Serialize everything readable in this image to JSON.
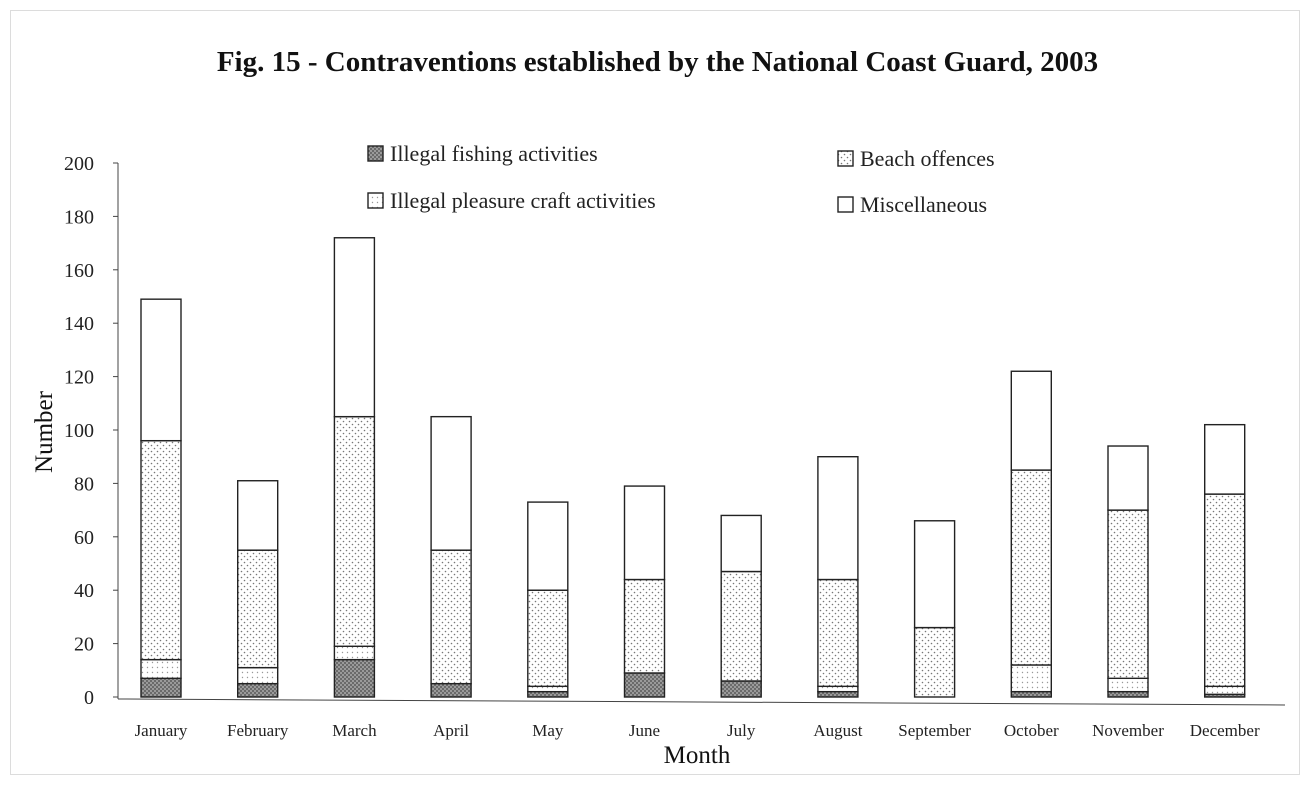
{
  "chart_data": {
    "type": "bar",
    "stacked": true,
    "title": "Fig. 15 - Contraventions established by the National Coast Guard, 2003",
    "xlabel": "Month",
    "ylabel": "Number",
    "ylim": [
      0,
      200
    ],
    "yticks": [
      0,
      20,
      40,
      60,
      80,
      100,
      120,
      140,
      160,
      180,
      200
    ],
    "grid": false,
    "legend_position": "top",
    "categories": [
      "January",
      "February",
      "March",
      "April",
      "May",
      "June",
      "July",
      "August",
      "September",
      "October",
      "November",
      "December"
    ],
    "series": [
      {
        "name": "Illegal fishing activities",
        "pattern": "dark-dots",
        "values": [
          7,
          5,
          14,
          5,
          2,
          9,
          6,
          2,
          0,
          2,
          2,
          1
        ]
      },
      {
        "name": "Illegal pleasure craft activities",
        "pattern": "light-dots",
        "values": [
          7,
          6,
          5,
          0,
          2,
          0,
          0,
          2,
          0,
          10,
          5,
          3
        ]
      },
      {
        "name": "Beach offences",
        "pattern": "dots",
        "values": [
          82,
          44,
          86,
          50,
          36,
          35,
          41,
          40,
          26,
          73,
          63,
          72
        ]
      },
      {
        "name": "Miscellaneous",
        "pattern": "blank",
        "values": [
          53,
          26,
          67,
          50,
          33,
          35,
          21,
          46,
          40,
          37,
          24,
          26
        ]
      }
    ]
  }
}
